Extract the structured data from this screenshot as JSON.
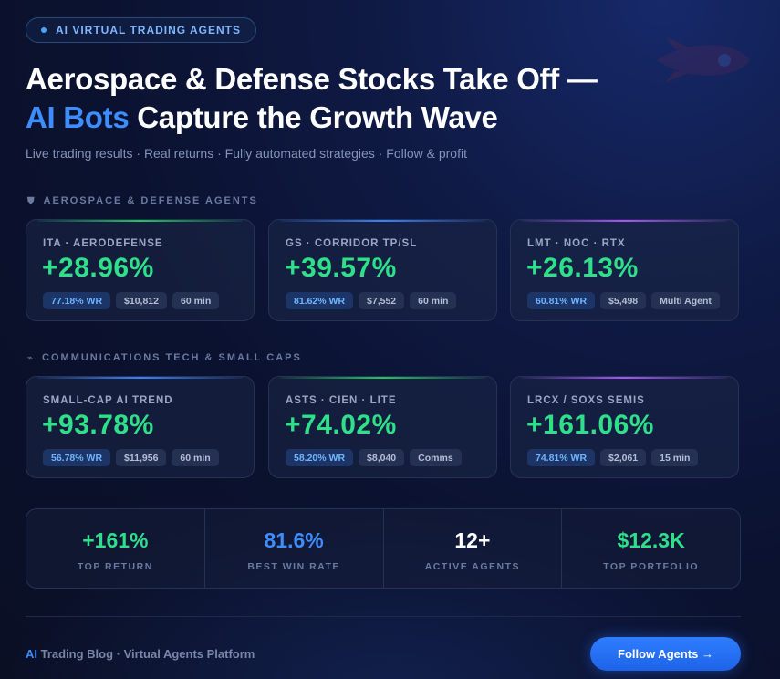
{
  "badge": {
    "label": "AI VIRTUAL TRADING AGENTS"
  },
  "headline": {
    "line1": "Aerospace & Defense Stocks Take Off —",
    "line2_highlight": "AI Bots",
    "line2_rest": " Capture the Growth Wave"
  },
  "subtitle": "Live trading results · Real returns · Fully automated strategies · Follow & profit",
  "sections": [
    {
      "label": "AEROSPACE & DEFENSE AGENTS",
      "icon": "shield-icon",
      "cards": [
        {
          "name": "ITA · AERODEFENSE",
          "return": "+28.96%",
          "wr": "77.18% WR",
          "balance": "$10,812",
          "extra": "60 min",
          "accent": "#22c55e"
        },
        {
          "name": "GS · CORRIDOR TP/SL",
          "return": "+39.57%",
          "wr": "81.62% WR",
          "balance": "$7,552",
          "extra": "60 min",
          "accent": "#3b82f6"
        },
        {
          "name": "LMT · NOC · RTX",
          "return": "+26.13%",
          "wr": "60.81% WR",
          "balance": "$5,498",
          "extra": "Multi Agent",
          "accent": "#a855f7"
        }
      ]
    },
    {
      "label": "COMMUNICATIONS TECH & SMALL CAPS",
      "icon": "satellite-icon",
      "cards": [
        {
          "name": "SMALL-CAP AI TREND",
          "return": "+93.78%",
          "wr": "56.78% WR",
          "balance": "$11,956",
          "extra": "60 min",
          "accent": "#3b82f6"
        },
        {
          "name": "ASTS · CIEN · LITE",
          "return": "+74.02%",
          "wr": "58.20% WR",
          "balance": "$8,040",
          "extra": "Comms",
          "accent": "#22c55e"
        },
        {
          "name": "LRCX / SOXS SEMIS",
          "return": "+161.06%",
          "wr": "74.81% WR",
          "balance": "$2,061",
          "extra": "15 min",
          "accent": "#a855f7"
        }
      ]
    }
  ],
  "stats": [
    {
      "value": "+161%",
      "label": "TOP RETURN",
      "color": "#2ee08a"
    },
    {
      "value": "81.6%",
      "label": "BEST WIN RATE",
      "color": "#3d8dff"
    },
    {
      "value": "12+",
      "label": "ACTIVE AGENTS",
      "color": "#ffffff"
    },
    {
      "value": "$12.3K",
      "label": "TOP PORTFOLIO",
      "color": "#2ee08a"
    }
  ],
  "footer": {
    "ai": "AI",
    "text": " Trading Blog · Virtual Agents Platform"
  },
  "cta": {
    "label": "Follow Agents →"
  },
  "colors": {
    "accent": "#3d8dff",
    "positive": "#2ee08a",
    "background": "#0b1230"
  }
}
